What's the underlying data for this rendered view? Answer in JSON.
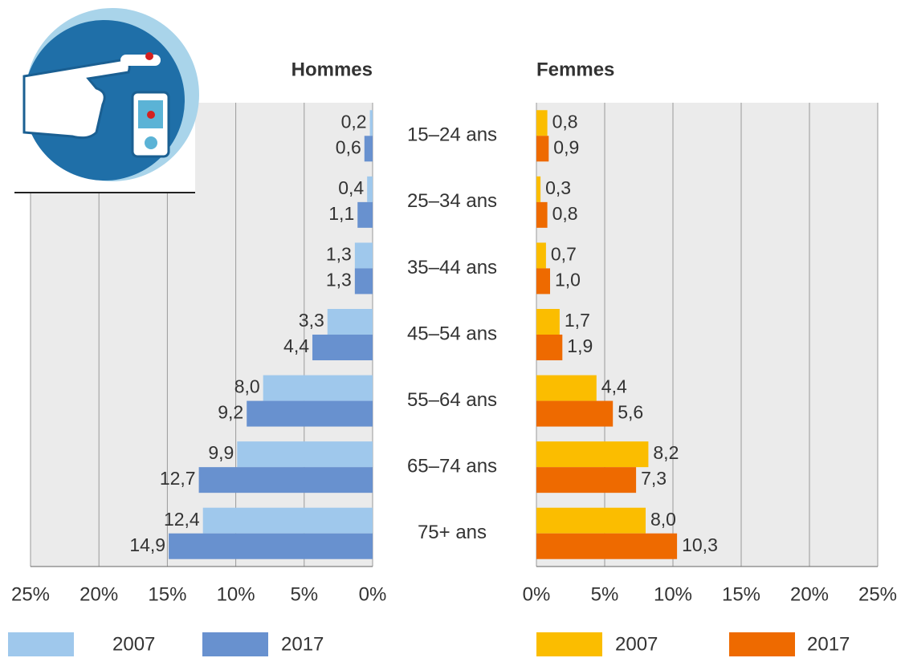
{
  "chart_data": [
    {
      "type": "bar",
      "orientation": "horizontal",
      "title": "Hommes",
      "categories": [
        "15–24 ans",
        "25–34 ans",
        "35–44 ans",
        "45–54 ans",
        "55–64 ans",
        "65–74 ans",
        "75+ ans"
      ],
      "series": [
        {
          "name": "2007",
          "color": "#9fc8ec",
          "values": [
            0.2,
            0.4,
            1.3,
            3.3,
            8.0,
            9.9,
            12.4
          ],
          "value_labels": [
            "0,2",
            "0,4",
            "1,3",
            "3,3",
            "8,0",
            "9,9",
            "12,4"
          ]
        },
        {
          "name": "2017",
          "color": "#6891cf",
          "values": [
            0.6,
            1.1,
            1.3,
            4.4,
            9.2,
            12.7,
            14.9
          ],
          "value_labels": [
            "0,6",
            "1,1",
            "1,3",
            "4,4",
            "9,2",
            "12,7",
            "14,9"
          ]
        }
      ],
      "xlim": [
        25,
        0
      ],
      "xticks": [
        {
          "value": 25,
          "label": "25%"
        },
        {
          "value": 20,
          "label": "20%"
        },
        {
          "value": 15,
          "label": "15%"
        },
        {
          "value": 10,
          "label": "10%"
        },
        {
          "value": 5,
          "label": "5%"
        },
        {
          "value": 0,
          "label": "0%"
        }
      ],
      "grid": true,
      "legend": "bottom"
    },
    {
      "type": "bar",
      "orientation": "horizontal",
      "title": "Femmes",
      "series": [
        {
          "name": "2007",
          "color": "#fbbd00",
          "values": [
            0.8,
            0.3,
            0.7,
            1.7,
            4.4,
            8.2,
            8.0
          ],
          "value_labels": [
            "0,8",
            "0,3",
            "0,7",
            "1,7",
            "4,4",
            "8,2",
            "8,0"
          ]
        },
        {
          "name": "2017",
          "color": "#ee6a00",
          "values": [
            0.9,
            0.8,
            1.0,
            1.9,
            5.6,
            7.3,
            10.3
          ],
          "value_labels": [
            "0,9",
            "0,8",
            "1,0",
            "1,9",
            "5,6",
            "7,3",
            "10,3"
          ]
        }
      ],
      "xlim": [
        0,
        25
      ],
      "xticks": [
        {
          "value": 0,
          "label": "0%"
        },
        {
          "value": 5,
          "label": "5%"
        },
        {
          "value": 10,
          "label": "10%"
        },
        {
          "value": 15,
          "label": "15%"
        },
        {
          "value": 20,
          "label": "20%"
        },
        {
          "value": 25,
          "label": "25%"
        }
      ],
      "grid": true,
      "legend": "bottom"
    }
  ]
}
